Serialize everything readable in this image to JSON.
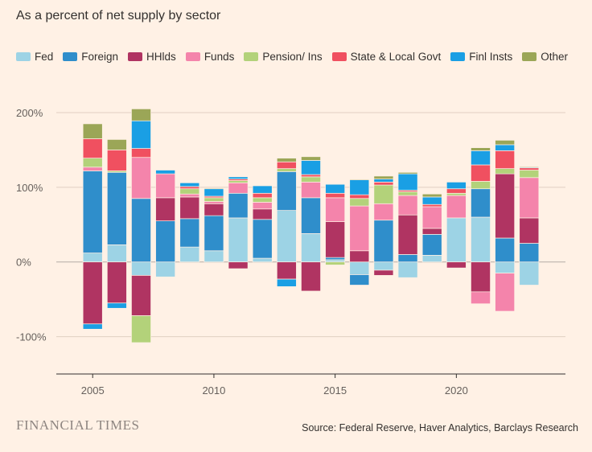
{
  "subtitle": "As a percent of net supply by sector",
  "source": "Source: Federal Reserve, Haver Analytics, Barclays Research",
  "logo": "FINANCIAL TIMES",
  "chart_data": {
    "type": "bar",
    "stacked": true,
    "title": "As a percent of net supply by sector",
    "xlabel": "",
    "ylabel": "",
    "x_ticks": [
      2005,
      2010,
      2015,
      2020
    ],
    "y_ticks": [
      {
        "value": 200,
        "label": "200%"
      },
      {
        "value": 100,
        "label": "100%"
      },
      {
        "value": 0,
        "label": "0%"
      },
      {
        "value": -100,
        "label": "-100%"
      }
    ],
    "ylim": [
      -150,
      200
    ],
    "xlim": [
      2003.5,
      2024.5
    ],
    "legend_position": "top",
    "grid": true,
    "categories": [
      2005,
      2006,
      2007,
      2008,
      2009,
      2010,
      2011,
      2012,
      2013,
      2014,
      2015,
      2016,
      2017,
      2018,
      2019,
      2020,
      2021,
      2022,
      2023
    ],
    "series": [
      {
        "name": "Fed",
        "color": "#9dd3e5",
        "values": [
          12,
          23,
          -18,
          -20,
          20,
          15,
          59,
          5,
          69,
          38,
          3,
          -17,
          -11,
          -21,
          9,
          59,
          60,
          -15,
          -31
        ]
      },
      {
        "name": "Foreign",
        "color": "#2f8ecb",
        "values": [
          110,
          97,
          85,
          55,
          38,
          47,
          33,
          52,
          52,
          48,
          3,
          -14,
          56,
          10,
          28,
          0,
          38,
          32,
          25
        ]
      },
      {
        "name": "HHlds",
        "color": "#b03462",
        "values": [
          -83,
          -55,
          -54,
          31,
          29,
          16,
          -9,
          14,
          -23,
          -39,
          48,
          15,
          -7,
          53,
          8,
          -8,
          -40,
          86,
          34
        ]
      },
      {
        "name": "Funds",
        "color": "#f484ab",
        "values": [
          5,
          0,
          55,
          32,
          4,
          3,
          14,
          9,
          0,
          21,
          32,
          60,
          22,
          26,
          29,
          30,
          -16,
          -51,
          54
        ]
      },
      {
        "name": "Pension/ Ins",
        "color": "#b3d27a",
        "values": [
          12,
          2,
          -36,
          0,
          7,
          5,
          3,
          6,
          4,
          7,
          -4,
          10,
          25,
          5,
          0,
          3,
          10,
          7,
          10
        ]
      },
      {
        "name": "State & Local Govt",
        "color": "#f05060",
        "values": [
          26,
          28,
          12,
          0,
          3,
          2,
          2,
          6,
          9,
          3,
          6,
          5,
          4,
          2,
          3,
          6,
          22,
          24,
          3
        ]
      },
      {
        "name": "Finl Insts",
        "color": "#1a9fe4",
        "values": [
          -7,
          -7,
          37,
          5,
          5,
          10,
          3,
          10,
          -10,
          19,
          12,
          20,
          4,
          22,
          10,
          9,
          19,
          8,
          1
        ]
      },
      {
        "name": "Other",
        "color": "#9ba657",
        "values": [
          20,
          14,
          16,
          0,
          0,
          1,
          0,
          0,
          5,
          5,
          0,
          1,
          4,
          2,
          4,
          0,
          4,
          6,
          1
        ]
      }
    ]
  }
}
